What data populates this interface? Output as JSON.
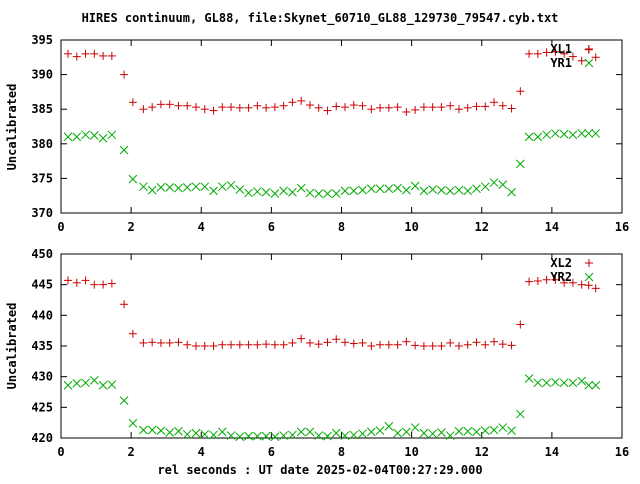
{
  "chart_data": [
    {
      "type": "scatter",
      "title": "HIRES continuum, GL88, file:Skynet_60710_GL88_129730_79547.cyb.txt",
      "xlabel": "",
      "ylabel": "Uncalibrated",
      "xlim": [
        0,
        16
      ],
      "ylim": [
        370,
        395
      ],
      "xticks": [
        0,
        2,
        4,
        6,
        8,
        10,
        12,
        14,
        16
      ],
      "yticks": [
        370,
        375,
        380,
        385,
        390,
        395
      ],
      "grid": false,
      "legend": "top-right",
      "series": [
        {
          "name": "XL1",
          "marker": "+",
          "color": "#cc0000",
          "x": [
            0.2,
            0.45,
            0.7,
            0.95,
            1.2,
            1.45,
            1.8,
            2.05,
            2.35,
            2.6,
            2.85,
            3.1,
            3.35,
            3.6,
            3.85,
            4.1,
            4.35,
            4.6,
            4.85,
            5.1,
            5.35,
            5.6,
            5.85,
            6.1,
            6.35,
            6.6,
            6.85,
            7.1,
            7.35,
            7.6,
            7.85,
            8.1,
            8.35,
            8.6,
            8.85,
            9.1,
            9.35,
            9.6,
            9.85,
            10.1,
            10.35,
            10.6,
            10.85,
            11.1,
            11.35,
            11.6,
            11.85,
            12.1,
            12.35,
            12.6,
            12.85,
            13.1,
            13.35,
            13.6,
            13.85,
            14.1,
            14.35,
            14.6,
            14.85,
            15.05,
            15.25
          ],
          "y": [
            393,
            392.6,
            393,
            393,
            392.7,
            392.7,
            390,
            386,
            385,
            385.3,
            385.7,
            385.7,
            385.5,
            385.5,
            385.3,
            385,
            384.8,
            385.3,
            385.3,
            385.2,
            385.2,
            385.5,
            385.2,
            385.3,
            385.5,
            386,
            386.2,
            385.6,
            385.2,
            384.8,
            385.4,
            385.3,
            385.6,
            385.5,
            385,
            385.2,
            385.2,
            385.3,
            384.6,
            384.9,
            385.3,
            385.3,
            385.3,
            385.5,
            385,
            385.2,
            385.4,
            385.4,
            386,
            385.5,
            385.1,
            387.6,
            393,
            393,
            393.2,
            393.3,
            393,
            392.6,
            392,
            393.6,
            392.5
          ]
        },
        {
          "name": "YR1",
          "marker": "x",
          "color": "#00aa00",
          "x": [
            0.2,
            0.45,
            0.7,
            0.95,
            1.2,
            1.45,
            1.8,
            2.05,
            2.35,
            2.6,
            2.85,
            3.1,
            3.35,
            3.6,
            3.85,
            4.1,
            4.35,
            4.6,
            4.85,
            5.1,
            5.35,
            5.6,
            5.85,
            6.1,
            6.35,
            6.6,
            6.85,
            7.1,
            7.35,
            7.6,
            7.85,
            8.1,
            8.35,
            8.6,
            8.85,
            9.1,
            9.35,
            9.6,
            9.85,
            10.1,
            10.35,
            10.6,
            10.85,
            11.1,
            11.35,
            11.6,
            11.85,
            12.1,
            12.35,
            12.6,
            12.85,
            13.1,
            13.35,
            13.6,
            13.85,
            14.1,
            14.35,
            14.6,
            14.85,
            15.05,
            15.25
          ],
          "y": [
            381,
            381,
            381.3,
            381.2,
            380.8,
            381.3,
            379.1,
            374.9,
            373.8,
            373.3,
            373.7,
            373.7,
            373.6,
            373.7,
            373.8,
            373.8,
            373.2,
            373.8,
            374,
            373.4,
            372.9,
            373.1,
            373,
            372.8,
            373.2,
            373,
            373.6,
            372.9,
            372.8,
            372.8,
            372.8,
            373.2,
            373.2,
            373.3,
            373.5,
            373.5,
            373.5,
            373.6,
            373.3,
            373.9,
            373.2,
            373.4,
            373.3,
            373.2,
            373.3,
            373.2,
            373.5,
            373.8,
            374.4,
            374.1,
            373,
            377.1,
            381,
            381,
            381.3,
            381.5,
            381.4,
            381.3,
            381.5,
            381.5,
            381.5
          ]
        }
      ]
    },
    {
      "type": "scatter",
      "title": "",
      "xlabel": "rel seconds : UT date 2025-02-04T00:27:29.000",
      "ylabel": "Uncalibrated",
      "xlim": [
        0,
        16
      ],
      "ylim": [
        420,
        450
      ],
      "xticks": [
        0,
        2,
        4,
        6,
        8,
        10,
        12,
        14,
        16
      ],
      "yticks": [
        420,
        425,
        430,
        435,
        440,
        445,
        450
      ],
      "grid": false,
      "legend": "top-right",
      "series": [
        {
          "name": "XL2",
          "marker": "+",
          "color": "#cc0000",
          "x": [
            0.2,
            0.45,
            0.7,
            0.95,
            1.2,
            1.45,
            1.8,
            2.05,
            2.35,
            2.6,
            2.85,
            3.1,
            3.35,
            3.6,
            3.85,
            4.1,
            4.35,
            4.6,
            4.85,
            5.1,
            5.35,
            5.6,
            5.85,
            6.1,
            6.35,
            6.6,
            6.85,
            7.1,
            7.35,
            7.6,
            7.85,
            8.1,
            8.35,
            8.6,
            8.85,
            9.1,
            9.35,
            9.6,
            9.85,
            10.1,
            10.35,
            10.6,
            10.85,
            11.1,
            11.35,
            11.6,
            11.85,
            12.1,
            12.35,
            12.6,
            12.85,
            13.1,
            13.35,
            13.6,
            13.85,
            14.1,
            14.35,
            14.6,
            14.85,
            15.05,
            15.25
          ],
          "y": [
            445.7,
            445.3,
            445.7,
            445,
            445,
            445.2,
            441.8,
            437,
            435.5,
            435.6,
            435.5,
            435.5,
            435.6,
            435.2,
            435,
            435,
            435,
            435.2,
            435.2,
            435.2,
            435.2,
            435.2,
            435.3,
            435.2,
            435.2,
            435.5,
            436.2,
            435.5,
            435.3,
            435.6,
            436.1,
            435.6,
            435.4,
            435.5,
            435,
            435.2,
            435.2,
            435.2,
            435.7,
            435.1,
            435,
            435,
            435,
            435.5,
            435,
            435.2,
            435.6,
            435.2,
            435.7,
            435.3,
            435.1,
            438.5,
            445.5,
            445.6,
            445.8,
            445.8,
            445.3,
            445.3,
            445,
            444.9,
            444.4
          ]
        },
        {
          "name": "YR2",
          "marker": "x",
          "color": "#00aa00",
          "x": [
            0.2,
            0.45,
            0.7,
            0.95,
            1.2,
            1.45,
            1.8,
            2.05,
            2.35,
            2.6,
            2.85,
            3.1,
            3.35,
            3.6,
            3.85,
            4.1,
            4.35,
            4.6,
            4.85,
            5.1,
            5.35,
            5.6,
            5.85,
            6.1,
            6.35,
            6.6,
            6.85,
            7.1,
            7.35,
            7.6,
            7.85,
            8.1,
            8.35,
            8.6,
            8.85,
            9.1,
            9.35,
            9.6,
            9.85,
            10.1,
            10.35,
            10.6,
            10.85,
            11.1,
            11.35,
            11.6,
            11.85,
            12.1,
            12.35,
            12.6,
            12.85,
            13.1,
            13.35,
            13.6,
            13.85,
            14.1,
            14.35,
            14.6,
            14.85,
            15.05,
            15.25
          ],
          "y": [
            428.6,
            428.9,
            429,
            429.4,
            428.6,
            428.7,
            426.1,
            422.4,
            421.3,
            421.3,
            421.2,
            420.9,
            421.1,
            420.6,
            420.8,
            420.6,
            420.5,
            421,
            420.4,
            420.2,
            420.3,
            420.3,
            420.3,
            420.2,
            420.4,
            420.5,
            421,
            421,
            420.4,
            420.3,
            420.8,
            420.4,
            420.5,
            420.7,
            421,
            421.2,
            421.9,
            420.8,
            421,
            421.7,
            420.8,
            420.7,
            420.9,
            420.4,
            421.1,
            421.1,
            421,
            421.2,
            421.3,
            421.7,
            421.2,
            423.9,
            429.7,
            429,
            429,
            429.1,
            429,
            429,
            429.3,
            428.6,
            428.6
          ]
        }
      ]
    }
  ]
}
